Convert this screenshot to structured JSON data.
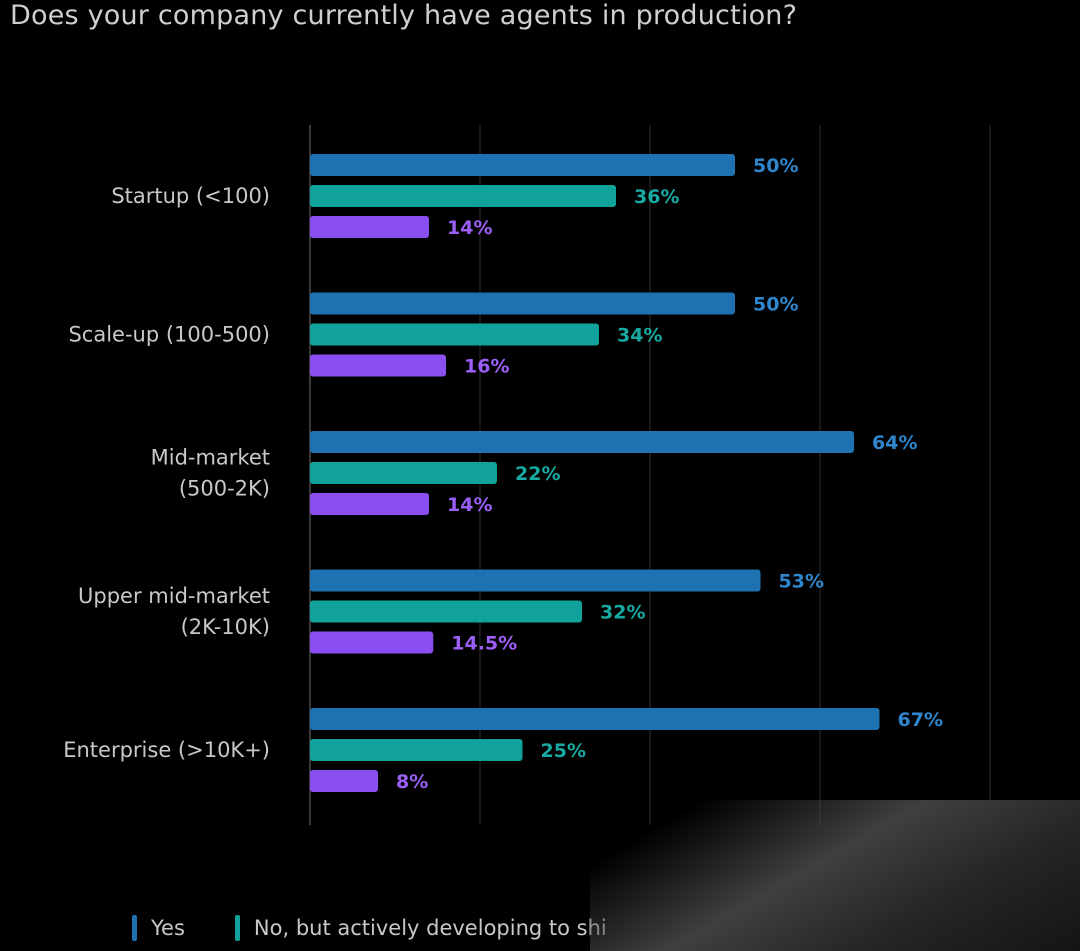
{
  "chart_data": {
    "type": "bar",
    "orientation": "horizontal",
    "title": "Does your company currently have agents in production?",
    "categories": [
      [
        "Startup (<100)"
      ],
      [
        "Scale-up (100-500)"
      ],
      [
        "Mid-market",
        "(500-2K)"
      ],
      [
        "Upper mid-market",
        "(2K-10K)"
      ],
      [
        "Enterprise (>10K+)"
      ]
    ],
    "series": [
      {
        "name": "Yes",
        "color": "#1e72b2",
        "label_color": "#2f86cc",
        "values": [
          50,
          50,
          64,
          53,
          67
        ],
        "value_labels": [
          "50%",
          "50%",
          "64%",
          "53%",
          "67%"
        ]
      },
      {
        "name": "No, but actively developing to shi",
        "color": "#11a39b",
        "label_color": "#17aaa2",
        "values": [
          36,
          34,
          22,
          32,
          25
        ],
        "value_labels": [
          "36%",
          "34%",
          "22%",
          "32%",
          "25%"
        ]
      },
      {
        "color": "#8b4ef0",
        "label_color": "#9b5ff7",
        "values": [
          14,
          16,
          14,
          14.5,
          8
        ],
        "value_labels": [
          "14%",
          "16%",
          "14%",
          "14.5%",
          "8%"
        ]
      }
    ],
    "xlim": [
      0,
      100
    ],
    "grid": true,
    "legend_position": "bottom"
  }
}
